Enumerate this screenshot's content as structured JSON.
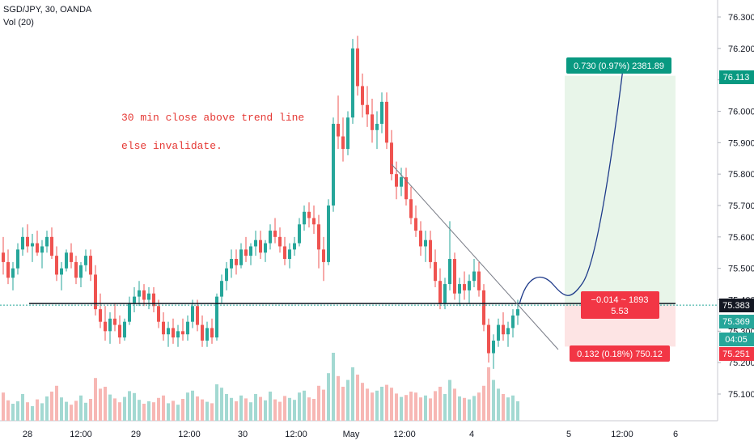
{
  "header": {
    "symbol_line": "SGD/JPY, 30, OANDA",
    "volume_line": "Vol (20)"
  },
  "annotation": {
    "line1": "30 min close above trend line",
    "line2": "else invalidate."
  },
  "colors": {
    "up": "#26a69a",
    "down": "#ef5350",
    "vol_up": "#a3d9d2",
    "vol_down": "#f7b7b4",
    "annotation": "#e53935",
    "profit_box": "#e8f5e9",
    "loss_box": "#fde4e4",
    "profit_label": "#089981",
    "loss_label": "#f23645",
    "projection": "#1e3a8a",
    "trendline": "#787b86",
    "support": "#131722"
  },
  "position": {
    "target_label": "0.730 (0.97%) 2381.89",
    "entry_label_line1": "−0.014 ~ 1893",
    "entry_label_line2": "5.53",
    "stop_label": "0.132 (0.18%) 750.12"
  },
  "price_badges": [
    {
      "text": "76.113",
      "color": "#089981"
    },
    {
      "text": "75.383",
      "color": "#131722"
    },
    {
      "text": "75.369",
      "color": "#26a69a"
    },
    {
      "text": "04:05",
      "color": "#26a69a"
    },
    {
      "text": "75.251",
      "color": "#f23645"
    }
  ],
  "chart_data": {
    "type": "candlestick",
    "y_axis": {
      "ticks": [
        "76.300",
        "76.200",
        "76.100",
        "76.000",
        "75.900",
        "75.800",
        "75.700",
        "75.600",
        "75.500",
        "75.400",
        "75.300",
        "75.200",
        "75.100"
      ],
      "range": [
        75.0,
        76.32
      ]
    },
    "x_axis": {
      "ticks": [
        "28",
        "12:00",
        "29",
        "12:00",
        "30",
        "12:00",
        "May",
        "12:00",
        "4",
        "5",
        "12:00",
        "6"
      ]
    },
    "levels": {
      "entry": 75.383,
      "target": 76.113,
      "stop": 75.251,
      "last": 75.369
    },
    "candles": [
      [
        75.55,
        75.6,
        75.48,
        75.52
      ],
      [
        75.52,
        75.56,
        75.45,
        75.47
      ],
      [
        75.47,
        75.52,
        75.43,
        75.5
      ],
      [
        75.5,
        75.58,
        75.48,
        75.56
      ],
      [
        75.56,
        75.63,
        75.54,
        75.6
      ],
      [
        75.6,
        75.64,
        75.55,
        75.57
      ],
      [
        75.57,
        75.61,
        75.52,
        75.58
      ],
      [
        75.58,
        75.62,
        75.54,
        75.55
      ],
      [
        75.55,
        75.59,
        75.5,
        75.57
      ],
      [
        75.57,
        75.62,
        75.55,
        75.6
      ],
      [
        75.6,
        75.63,
        75.53,
        75.54
      ],
      [
        75.54,
        75.57,
        75.46,
        75.48
      ],
      [
        75.48,
        75.52,
        75.43,
        75.5
      ],
      [
        75.5,
        75.56,
        75.49,
        75.55
      ],
      [
        75.55,
        75.58,
        75.5,
        75.52
      ],
      [
        75.52,
        75.54,
        75.45,
        75.47
      ],
      [
        75.47,
        75.52,
        75.44,
        75.51
      ],
      [
        75.51,
        75.56,
        75.49,
        75.54
      ],
      [
        75.54,
        75.56,
        75.46,
        75.48
      ],
      [
        75.48,
        75.51,
        75.35,
        75.37
      ],
      [
        75.37,
        75.42,
        75.31,
        75.33
      ],
      [
        75.33,
        75.38,
        75.27,
        75.3
      ],
      [
        75.3,
        75.36,
        75.26,
        75.34
      ],
      [
        75.34,
        75.39,
        75.3,
        75.32
      ],
      [
        75.32,
        75.35,
        75.26,
        75.28
      ],
      [
        75.28,
        75.34,
        75.27,
        75.33
      ],
      [
        75.33,
        75.41,
        75.32,
        75.39
      ],
      [
        75.39,
        75.44,
        75.36,
        75.41
      ],
      [
        75.41,
        75.46,
        75.38,
        75.43
      ],
      [
        75.43,
        75.45,
        75.38,
        75.4
      ],
      [
        75.4,
        75.44,
        75.37,
        75.42
      ],
      [
        75.42,
        75.44,
        75.36,
        75.38
      ],
      [
        75.38,
        75.4,
        75.31,
        75.33
      ],
      [
        75.33,
        75.36,
        75.27,
        75.29
      ],
      [
        75.29,
        75.33,
        75.25,
        75.31
      ],
      [
        75.31,
        75.34,
        75.26,
        75.28
      ],
      [
        75.28,
        75.32,
        75.25,
        75.3
      ],
      [
        75.3,
        75.34,
        75.27,
        75.29
      ],
      [
        75.29,
        75.35,
        75.27,
        75.33
      ],
      [
        75.33,
        75.4,
        75.31,
        75.38
      ],
      [
        75.38,
        75.4,
        75.3,
        75.32
      ],
      [
        75.32,
        75.35,
        75.25,
        75.27
      ],
      [
        75.27,
        75.33,
        75.25,
        75.31
      ],
      [
        75.31,
        75.34,
        75.26,
        75.28
      ],
      [
        75.28,
        75.42,
        75.27,
        75.41
      ],
      [
        75.41,
        75.48,
        75.39,
        75.46
      ],
      [
        75.46,
        75.52,
        75.43,
        75.5
      ],
      [
        75.5,
        75.56,
        75.47,
        75.53
      ],
      [
        75.53,
        75.56,
        75.48,
        75.51
      ],
      [
        75.51,
        75.58,
        75.5,
        75.56
      ],
      [
        75.56,
        75.6,
        75.52,
        75.54
      ],
      [
        75.54,
        75.58,
        75.51,
        75.57
      ],
      [
        75.57,
        75.62,
        75.54,
        75.59
      ],
      [
        75.59,
        75.62,
        75.53,
        75.55
      ],
      [
        75.55,
        75.59,
        75.52,
        75.58
      ],
      [
        75.58,
        75.64,
        75.56,
        75.62
      ],
      [
        75.62,
        75.66,
        75.58,
        75.6
      ],
      [
        75.6,
        75.63,
        75.55,
        75.57
      ],
      [
        75.57,
        75.6,
        75.51,
        75.53
      ],
      [
        75.53,
        75.58,
        75.5,
        75.56
      ],
      [
        75.56,
        75.6,
        75.54,
        75.58
      ],
      [
        75.58,
        75.66,
        75.57,
        75.64
      ],
      [
        75.64,
        75.7,
        75.62,
        75.68
      ],
      [
        75.68,
        75.71,
        75.63,
        75.66
      ],
      [
        75.66,
        75.7,
        75.61,
        75.64
      ],
      [
        75.64,
        75.67,
        75.5,
        75.56
      ],
      [
        75.56,
        75.6,
        75.46,
        75.52
      ],
      [
        75.52,
        75.72,
        75.51,
        75.7
      ],
      [
        75.7,
        75.98,
        75.68,
        75.96
      ],
      [
        75.96,
        76.05,
        75.88,
        75.92
      ],
      [
        75.92,
        75.98,
        75.84,
        75.88
      ],
      [
        75.88,
        76.0,
        75.86,
        75.98
      ],
      [
        75.98,
        76.23,
        75.96,
        76.2
      ],
      [
        76.2,
        76.24,
        76.05,
        76.08
      ],
      [
        76.08,
        76.12,
        75.98,
        76.02
      ],
      [
        76.02,
        76.08,
        75.95,
        75.99
      ],
      [
        75.99,
        76.04,
        75.9,
        75.94
      ],
      [
        75.94,
        76.0,
        75.88,
        75.96
      ],
      [
        75.96,
        76.06,
        75.93,
        76.03
      ],
      [
        76.03,
        76.06,
        75.88,
        75.9
      ],
      [
        75.9,
        75.94,
        75.78,
        75.8
      ],
      [
        75.8,
        75.84,
        75.72,
        75.76
      ],
      [
        75.76,
        75.82,
        75.73,
        75.79
      ],
      [
        75.79,
        75.82,
        75.7,
        75.72
      ],
      [
        75.72,
        75.76,
        75.64,
        75.66
      ],
      [
        75.66,
        75.7,
        75.6,
        75.62
      ],
      [
        75.62,
        75.65,
        75.54,
        75.57
      ],
      [
        75.57,
        75.62,
        75.52,
        75.59
      ],
      [
        75.59,
        75.62,
        75.5,
        75.52
      ],
      [
        75.52,
        75.56,
        75.44,
        75.46
      ],
      [
        75.46,
        75.5,
        75.37,
        75.39
      ],
      [
        75.39,
        75.47,
        75.37,
        75.45
      ],
      [
        75.45,
        75.65,
        75.43,
        75.53
      ],
      [
        75.53,
        75.55,
        75.4,
        75.42
      ],
      [
        75.42,
        75.47,
        75.38,
        75.45
      ],
      [
        75.45,
        75.49,
        75.4,
        75.43
      ],
      [
        75.43,
        75.48,
        75.39,
        75.46
      ],
      [
        75.46,
        75.53,
        75.44,
        75.49
      ],
      [
        75.49,
        75.52,
        75.41,
        75.43
      ],
      [
        75.43,
        75.45,
        75.3,
        75.32
      ],
      [
        75.32,
        75.34,
        75.2,
        75.23
      ],
      [
        75.23,
        75.29,
        75.18,
        75.27
      ],
      [
        75.27,
        75.34,
        75.25,
        75.32
      ],
      [
        75.32,
        75.36,
        75.27,
        75.29
      ],
      [
        75.29,
        75.33,
        75.25,
        75.31
      ],
      [
        75.31,
        75.37,
        75.28,
        75.35
      ],
      [
        75.35,
        75.4,
        75.32,
        75.37
      ]
    ],
    "volumes": [
      58,
      42,
      35,
      40,
      55,
      38,
      30,
      44,
      36,
      50,
      60,
      72,
      48,
      39,
      33,
      41,
      52,
      37,
      45,
      88,
      66,
      70,
      54,
      46,
      38,
      49,
      61,
      57,
      43,
      35,
      40,
      38,
      47,
      52,
      36,
      41,
      33,
      45,
      58,
      62,
      50,
      44,
      39,
      36,
      75,
      68,
      55,
      47,
      40,
      52,
      46,
      38,
      55,
      49,
      42,
      60,
      44,
      39,
      51,
      47,
      43,
      58,
      62,
      48,
      45,
      72,
      64,
      98,
      140,
      92,
      70,
      84,
      110,
      95,
      78,
      66,
      58,
      62,
      70,
      74,
      68,
      56,
      49,
      53,
      60,
      58,
      48,
      52,
      46,
      61,
      70,
      55,
      84,
      66,
      50,
      47,
      44,
      51,
      58,
      72,
      110,
      84,
      66,
      55,
      48,
      52,
      40
    ]
  }
}
